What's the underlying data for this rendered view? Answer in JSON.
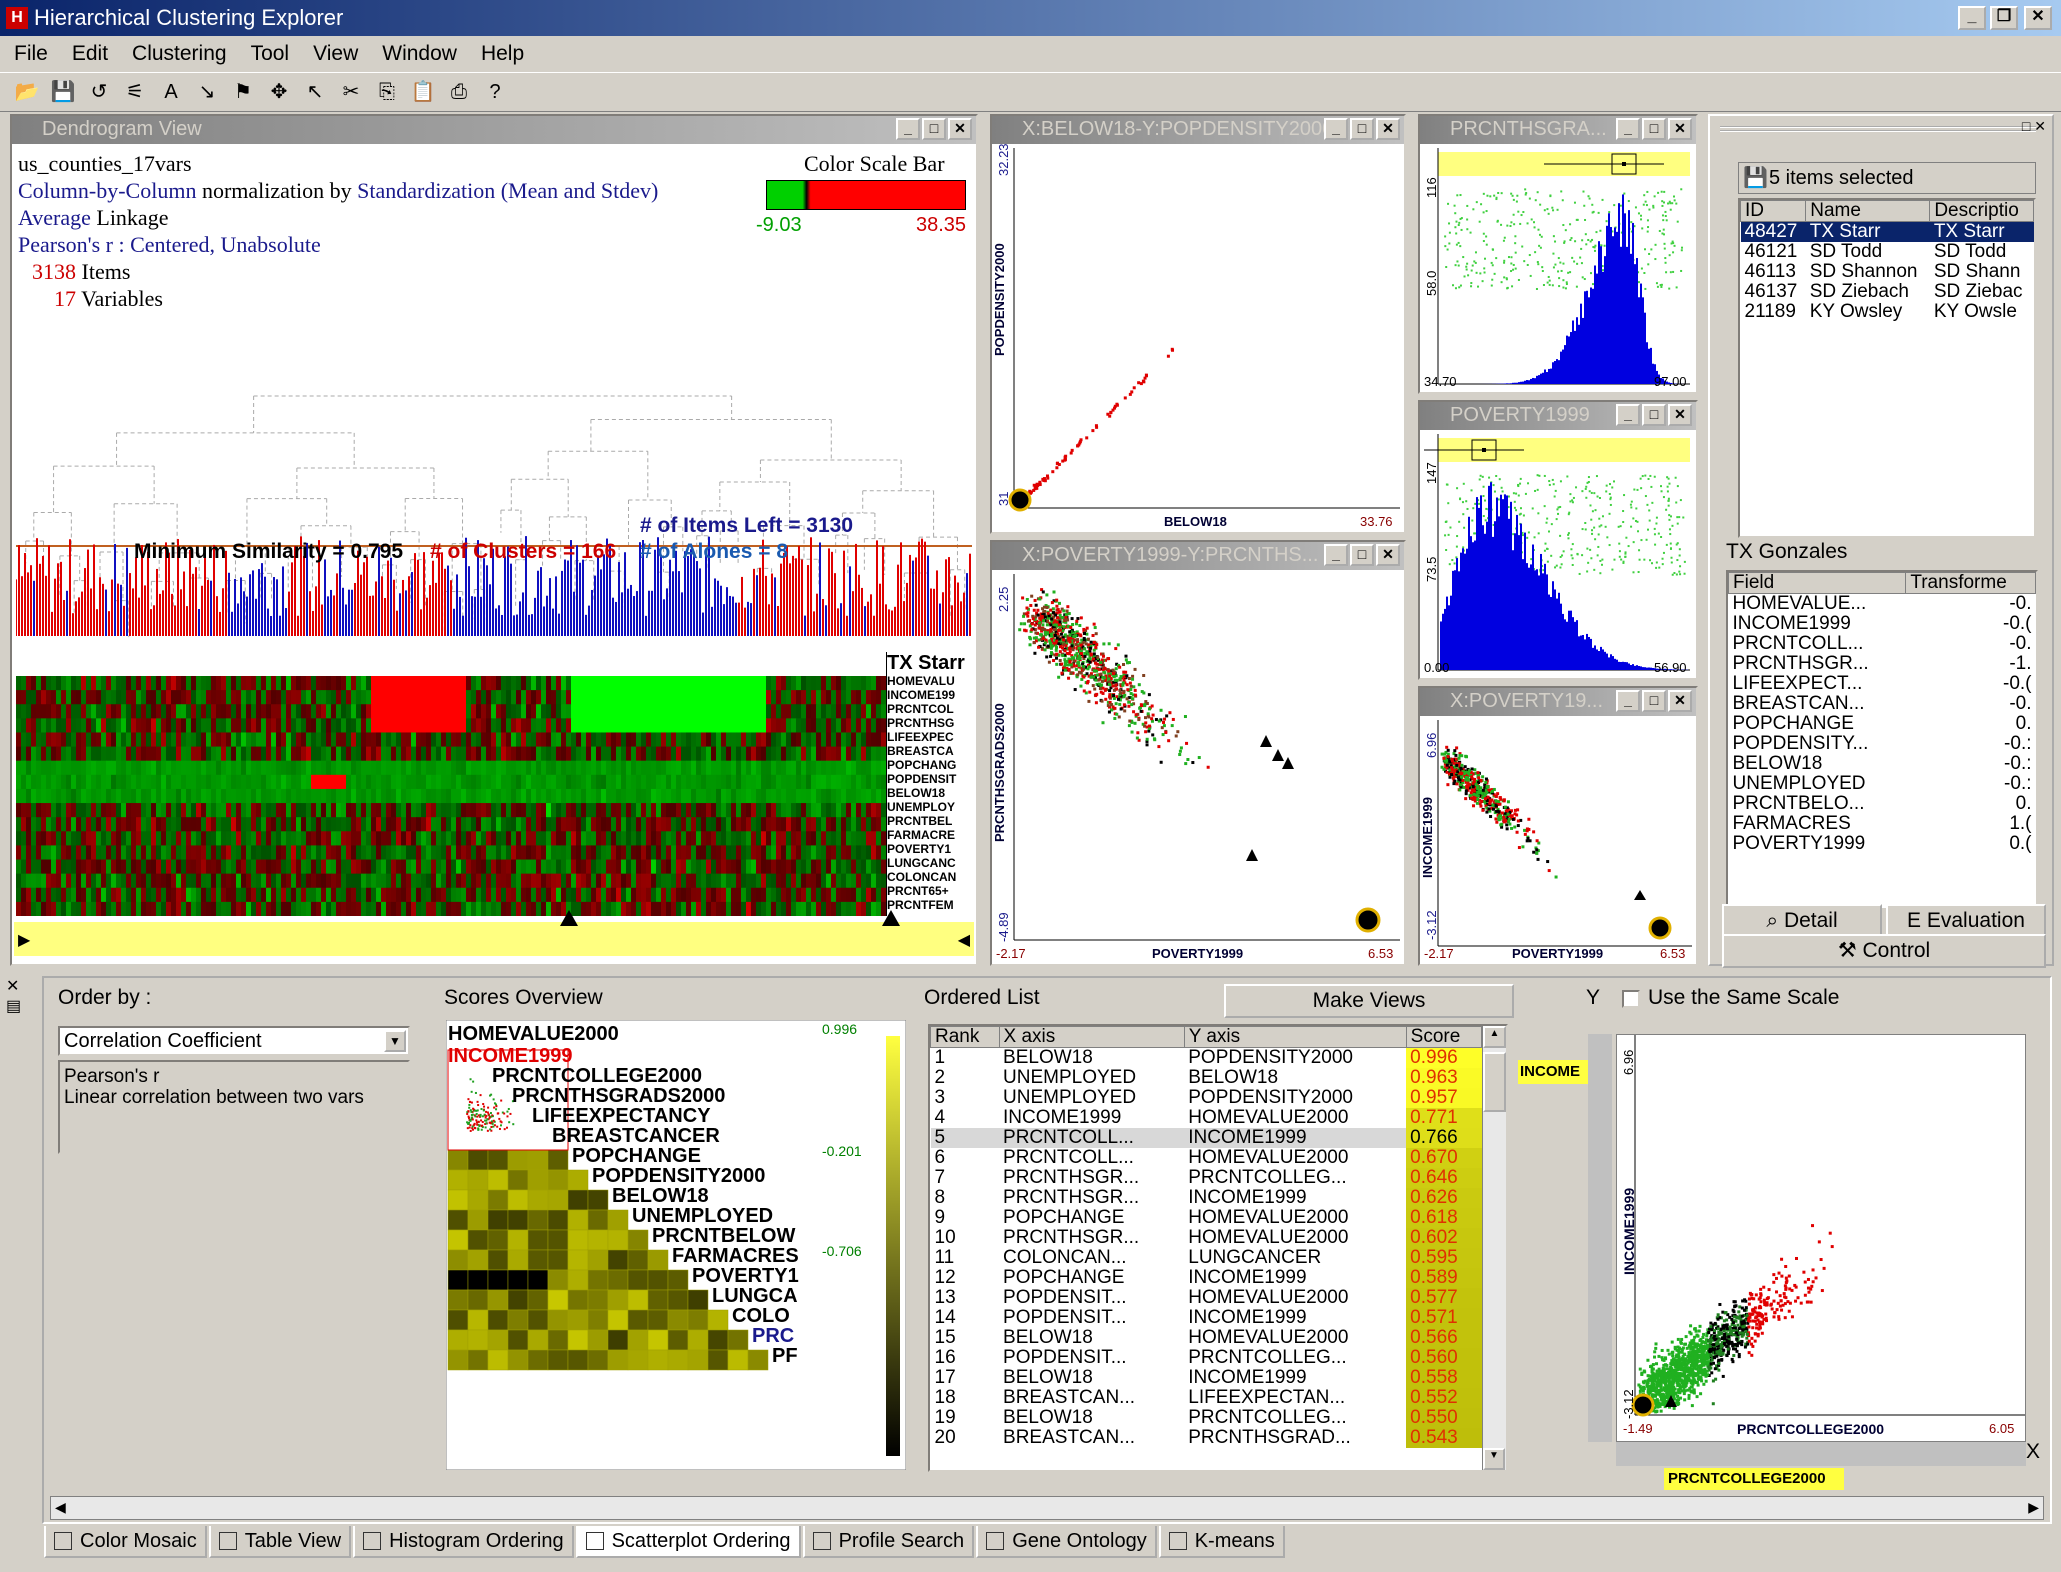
{
  "app": {
    "title": "Hierarchical Clustering Explorer",
    "icon": "H"
  },
  "window_controls": {
    "minimize": "_",
    "restore": "❐",
    "close": "✕"
  },
  "menu": [
    "File",
    "Edit",
    "Clustering",
    "Tool",
    "View",
    "Window",
    "Help"
  ],
  "toolbar": {
    "icons": [
      "open-folder-icon",
      "save-icon",
      "refresh-icon",
      "cluster-icon",
      "label-icon",
      "arrow-red-icon",
      "flag-icon",
      "gear-icon",
      "pointer-icon",
      "cut-icon",
      "copy-icon",
      "paste-icon",
      "print-icon",
      "help-icon"
    ],
    "glyphs": [
      "📂",
      "💾",
      "↺",
      "⚟",
      "A",
      "↘",
      "⚑",
      "✥",
      "↖",
      "✂",
      "⎘",
      "📋",
      "⎙",
      "?"
    ]
  },
  "dendrogram": {
    "title": "Dendrogram View",
    "dataset": "us_counties_17vars",
    "normalization_prefix": "Column-by-Column",
    "normalization_mid": " normalization by ",
    "normalization_method": "Standardization (Mean and Stdev)",
    "linkage": "Average",
    "linkage_suffix": " Linkage",
    "similarity": "Pearson's r : Centered, Unabsolute",
    "items_count": "3138",
    "items_label": " Items",
    "vars_count": "17",
    "vars_label": " Variables",
    "color_scale_label": "Color Scale Bar",
    "scale_min": "-9.03",
    "scale_max": "38.35",
    "min_similarity": "Minimum Similarity = 0.795",
    "clusters": "# of Clusters = 166",
    "items_left": "# of Items Left = 3130",
    "alones": "# of Alones = 8",
    "selected_item": "TX Starr",
    "row_labels": [
      "HOMEVALU",
      "INCOME199",
      "PRCNTCOL",
      "PRCNTHSG",
      "LIFEEXPEC",
      "BREASTCA",
      "POPCHANG",
      "POPDENSIT",
      "BELOW18",
      "UNEMPLOY",
      "PRCNTBEL",
      "FARMACRE",
      "POVERTY1",
      "LUNGCANC",
      "COLONCAN",
      "PRCNT65+",
      "PRCNTFEM"
    ]
  },
  "scatter1": {
    "title": "X:BELOW18-Y:POPDENSITY2000",
    "xlabel": "BELOW18",
    "ylabel": "POPDENSITY2000",
    "ymax": "32.23",
    "ymin": "31",
    "xmax": "33.76"
  },
  "scatter2": {
    "title": "X:POVERTY1999-Y:PRCNTHS...",
    "xlabel": "POVERTY1999",
    "ylabel": "PRCNTHSGRADS2000",
    "ymax": "2.25",
    "ymin": "-4.89",
    "xmin": "-2.17",
    "xmax": "6.53"
  },
  "hist1": {
    "title": "PRCNTHSGRA...",
    "xmin": "34.70",
    "xmax": "97.00",
    "y1": "116",
    "y2": "58.0"
  },
  "hist2": {
    "title": "POVERTY1999",
    "xmin": "0.00",
    "xmax": "56.90",
    "y1": "147",
    "y2": "73.5"
  },
  "scatter3": {
    "title": "X:POVERTY19...",
    "xlabel": "POVERTY1999",
    "ylabel": "INCOME1999",
    "ymax": "6.96",
    "ymin": "-3.12",
    "xmin": "-2.17",
    "xmax": "6.53"
  },
  "selection_panel": {
    "selected_count": "5 items selected",
    "columns": [
      "ID",
      "Name",
      "Descriptio"
    ],
    "rows": [
      [
        "48427",
        "TX Starr",
        "TX Starr"
      ],
      [
        "46121",
        "SD Todd",
        "SD Todd"
      ],
      [
        "46113",
        "SD Shannon",
        "SD Shann"
      ],
      [
        "46137",
        "SD Ziebach",
        "SD Ziebac"
      ],
      [
        "21189",
        "KY Owsley",
        "KY Owsle"
      ]
    ],
    "detail_title": "TX Gonzales",
    "detail_columns": [
      "Field",
      "Transforme"
    ],
    "detail_rows": [
      [
        "HOMEVALUE...",
        "-0."
      ],
      [
        "INCOME1999",
        "-0.("
      ],
      [
        "PRCNTCOLL...",
        "-0."
      ],
      [
        "PRCNTHSGR...",
        "-1."
      ],
      [
        "LIFEEXPECT...",
        "-0.("
      ],
      [
        "BREASTCAN...",
        "-0."
      ],
      [
        "POPCHANGE",
        "0."
      ],
      [
        "POPDENSITY...",
        "-0.:"
      ],
      [
        "BELOW18",
        "-0.:"
      ],
      [
        "UNEMPLOYED",
        "-0.:"
      ],
      [
        "PRCNTBELO...",
        "0."
      ],
      [
        "FARMACRES",
        "1.("
      ],
      [
        "POVERTY1999",
        "0.("
      ]
    ],
    "tab_detail": "Detail",
    "tab_evaluation": "Evaluation",
    "tab_control": "Control"
  },
  "ordering": {
    "order_by_label": "Order by :",
    "criterion": "Correlation Coefficient",
    "description_line1": "Pearson's r",
    "description_line2": "Linear correlation between two vars",
    "scores_overview_label": "Scores Overview",
    "overview_labels": [
      "HOMEVALUE2000",
      "INCOME1999",
      "PRCNTCOLLEGE2000",
      "PRCNTHSGRADS2000",
      "LIFEEXPECTANCY",
      "BREASTCANCER",
      "POPCHANGE",
      "POPDENSITY2000",
      "BELOW18",
      "UNEMPLOYED",
      "PRCNTBELOW",
      "FARMACRES",
      "POVERTY1",
      "LUNGCA",
      "COLO",
      "PRC",
      "PF"
    ],
    "legend_max": "0.996",
    "legend_mid": "-0.201",
    "legend_min": "-0.706",
    "ordered_list_label": "Ordered List",
    "make_views": "Make Views",
    "list_columns": [
      "Rank",
      "X axis",
      "Y axis",
      "Score"
    ],
    "list_rows": [
      [
        "1",
        "BELOW18",
        "POPDENSITY2000",
        "0.996"
      ],
      [
        "2",
        "UNEMPLOYED",
        "BELOW18",
        "0.963"
      ],
      [
        "3",
        "UNEMPLOYED",
        "POPDENSITY2000",
        "0.957"
      ],
      [
        "4",
        "INCOME1999",
        "HOMEVALUE2000",
        "0.771"
      ],
      [
        "5",
        "PRCNTCOLL...",
        "INCOME1999",
        "0.766"
      ],
      [
        "6",
        "PRCNTCOLL...",
        "HOMEVALUE2000",
        "0.670"
      ],
      [
        "7",
        "PRCNTHSGR...",
        "PRCNTCOLLEG...",
        "0.646"
      ],
      [
        "8",
        "PRCNTHSGR...",
        "INCOME1999",
        "0.626"
      ],
      [
        "9",
        "POPCHANGE",
        "HOMEVALUE2000",
        "0.618"
      ],
      [
        "10",
        "PRCNTHSGR...",
        "HOMEVALUE2000",
        "0.602"
      ],
      [
        "11",
        "COLONCAN...",
        "LUNGCANCER",
        "0.595"
      ],
      [
        "12",
        "POPCHANGE",
        "INCOME1999",
        "0.589"
      ],
      [
        "13",
        "POPDENSIT...",
        "HOMEVALUE2000",
        "0.577"
      ],
      [
        "14",
        "POPDENSIT...",
        "INCOME1999",
        "0.571"
      ],
      [
        "15",
        "BELOW18",
        "HOMEVALUE2000",
        "0.566"
      ],
      [
        "16",
        "POPDENSIT...",
        "PRCNTCOLLEG...",
        "0.560"
      ],
      [
        "17",
        "BELOW18",
        "INCOME1999",
        "0.558"
      ],
      [
        "18",
        "BREASTCAN...",
        "LIFEEXPECTAN...",
        "0.552"
      ],
      [
        "19",
        "BELOW18",
        "PRCNTCOLLEG...",
        "0.550"
      ],
      [
        "20",
        "BREASTCAN...",
        "PRCNTHSGRAD...",
        "0.543"
      ]
    ],
    "y_label": "Y",
    "same_scale": "Use the Same Scale",
    "y_select": "INCOME",
    "x_label": "X",
    "x_select": "PRCNTCOLLEGE2000",
    "big_xlabel": "PRCNTCOLLEGE2000",
    "big_ylabel": "INCOME1999",
    "big_ymax": "6.96",
    "big_ymin": "-3.12",
    "big_xmin": "-1.49",
    "big_xmax": "6.05"
  },
  "tabs": [
    "Color Mosaic",
    "Table View",
    "Histogram Ordering",
    "Scatterplot Ordering",
    "Profile Search",
    "Gene Ontology",
    "K-means"
  ],
  "active_tab": "Scatterplot Ordering",
  "colors": {
    "red": "#e00000",
    "green": "#00c000",
    "blue": "#0000c0",
    "yellow": "#ffff80",
    "navy": "#1a1a8c"
  }
}
